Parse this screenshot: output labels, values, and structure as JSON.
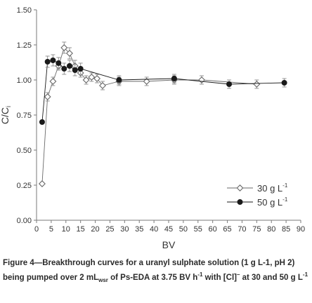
{
  "chart_data": {
    "type": "scatter",
    "xlabel": "BV",
    "ylabel": "C/Ci",
    "ylabel_main": "C/C",
    "ylabel_sub": "i",
    "xlim": [
      0,
      90
    ],
    "ylim": [
      0,
      1.5
    ],
    "x_ticks": [
      0,
      5,
      10,
      15,
      20,
      25,
      30,
      35,
      40,
      45,
      50,
      55,
      60,
      65,
      70,
      75,
      80,
      85,
      90
    ],
    "y_ticks": [
      0.0,
      0.25,
      0.5,
      0.75,
      1.0,
      1.25,
      1.5
    ],
    "y_tick_labels": [
      "0.00",
      "0.25",
      "0.50",
      "0.75",
      "1.00",
      "1.25",
      "1.50"
    ],
    "grid": false,
    "legend_position": "bottom-right",
    "series": [
      {
        "name": "30 g L-1",
        "legend_main": "30 g L",
        "legend_sup": "-1",
        "marker": "open-diamond",
        "color": "#6a6a6a",
        "points": [
          {
            "x": 1.9,
            "y": 0.26,
            "err": 0.0
          },
          {
            "x": 3.75,
            "y": 0.88,
            "err": 0.03
          },
          {
            "x": 5.6,
            "y": 0.99,
            "err": 0.03
          },
          {
            "x": 7.5,
            "y": 1.1,
            "err": 0.03
          },
          {
            "x": 9.4,
            "y": 1.23,
            "err": 0.04
          },
          {
            "x": 11.25,
            "y": 1.19,
            "err": 0.04
          },
          {
            "x": 13.1,
            "y": 1.1,
            "err": 0.04
          },
          {
            "x": 15.0,
            "y": 1.05,
            "err": 0.03
          },
          {
            "x": 16.9,
            "y": 1.0,
            "err": 0.03
          },
          {
            "x": 18.75,
            "y": 1.02,
            "err": 0.03
          },
          {
            "x": 20.6,
            "y": 1.01,
            "err": 0.03
          },
          {
            "x": 22.5,
            "y": 0.96,
            "err": 0.03
          },
          {
            "x": 28.1,
            "y": 0.99,
            "err": 0.03
          },
          {
            "x": 37.5,
            "y": 0.99,
            "err": 0.03
          },
          {
            "x": 46.9,
            "y": 1.0,
            "err": 0.03
          },
          {
            "x": 56.25,
            "y": 1.0,
            "err": 0.03
          },
          {
            "x": 75.0,
            "y": 0.97,
            "err": 0.03
          }
        ]
      },
      {
        "name": "50 g L-1",
        "legend_main": "50 g L",
        "legend_sup": "-1",
        "marker": "filled-circle",
        "color": "#1a1a1a",
        "points": [
          {
            "x": 1.9,
            "y": 0.7,
            "err": 0.0
          },
          {
            "x": 3.75,
            "y": 1.13,
            "err": 0.04
          },
          {
            "x": 5.6,
            "y": 1.14,
            "err": 0.04
          },
          {
            "x": 7.5,
            "y": 1.12,
            "err": 0.04
          },
          {
            "x": 9.4,
            "y": 1.08,
            "err": 0.04
          },
          {
            "x": 11.25,
            "y": 1.1,
            "err": 0.04
          },
          {
            "x": 13.1,
            "y": 1.07,
            "err": 0.04
          },
          {
            "x": 15.0,
            "y": 1.08,
            "err": 0.04
          },
          {
            "x": 28.1,
            "y": 1.0,
            "err": 0.03
          },
          {
            "x": 46.9,
            "y": 1.01,
            "err": 0.03
          },
          {
            "x": 65.6,
            "y": 0.97,
            "err": 0.03
          },
          {
            "x": 84.4,
            "y": 0.98,
            "err": 0.03
          }
        ]
      }
    ]
  },
  "caption": {
    "part1": "Figure 4—Breakthrough curves for a uranyl sulphate solution (1 g L-1, pH 2) being pumped over 2 mL",
    "sub1": "wsr",
    "part2": " of Ps-EDA at 3.75 BV h",
    "sup1": "-1",
    "part3": " with [Cl]",
    "sup2": "–",
    "part4": " at 30 and 50 g L",
    "sup3": "-1"
  }
}
